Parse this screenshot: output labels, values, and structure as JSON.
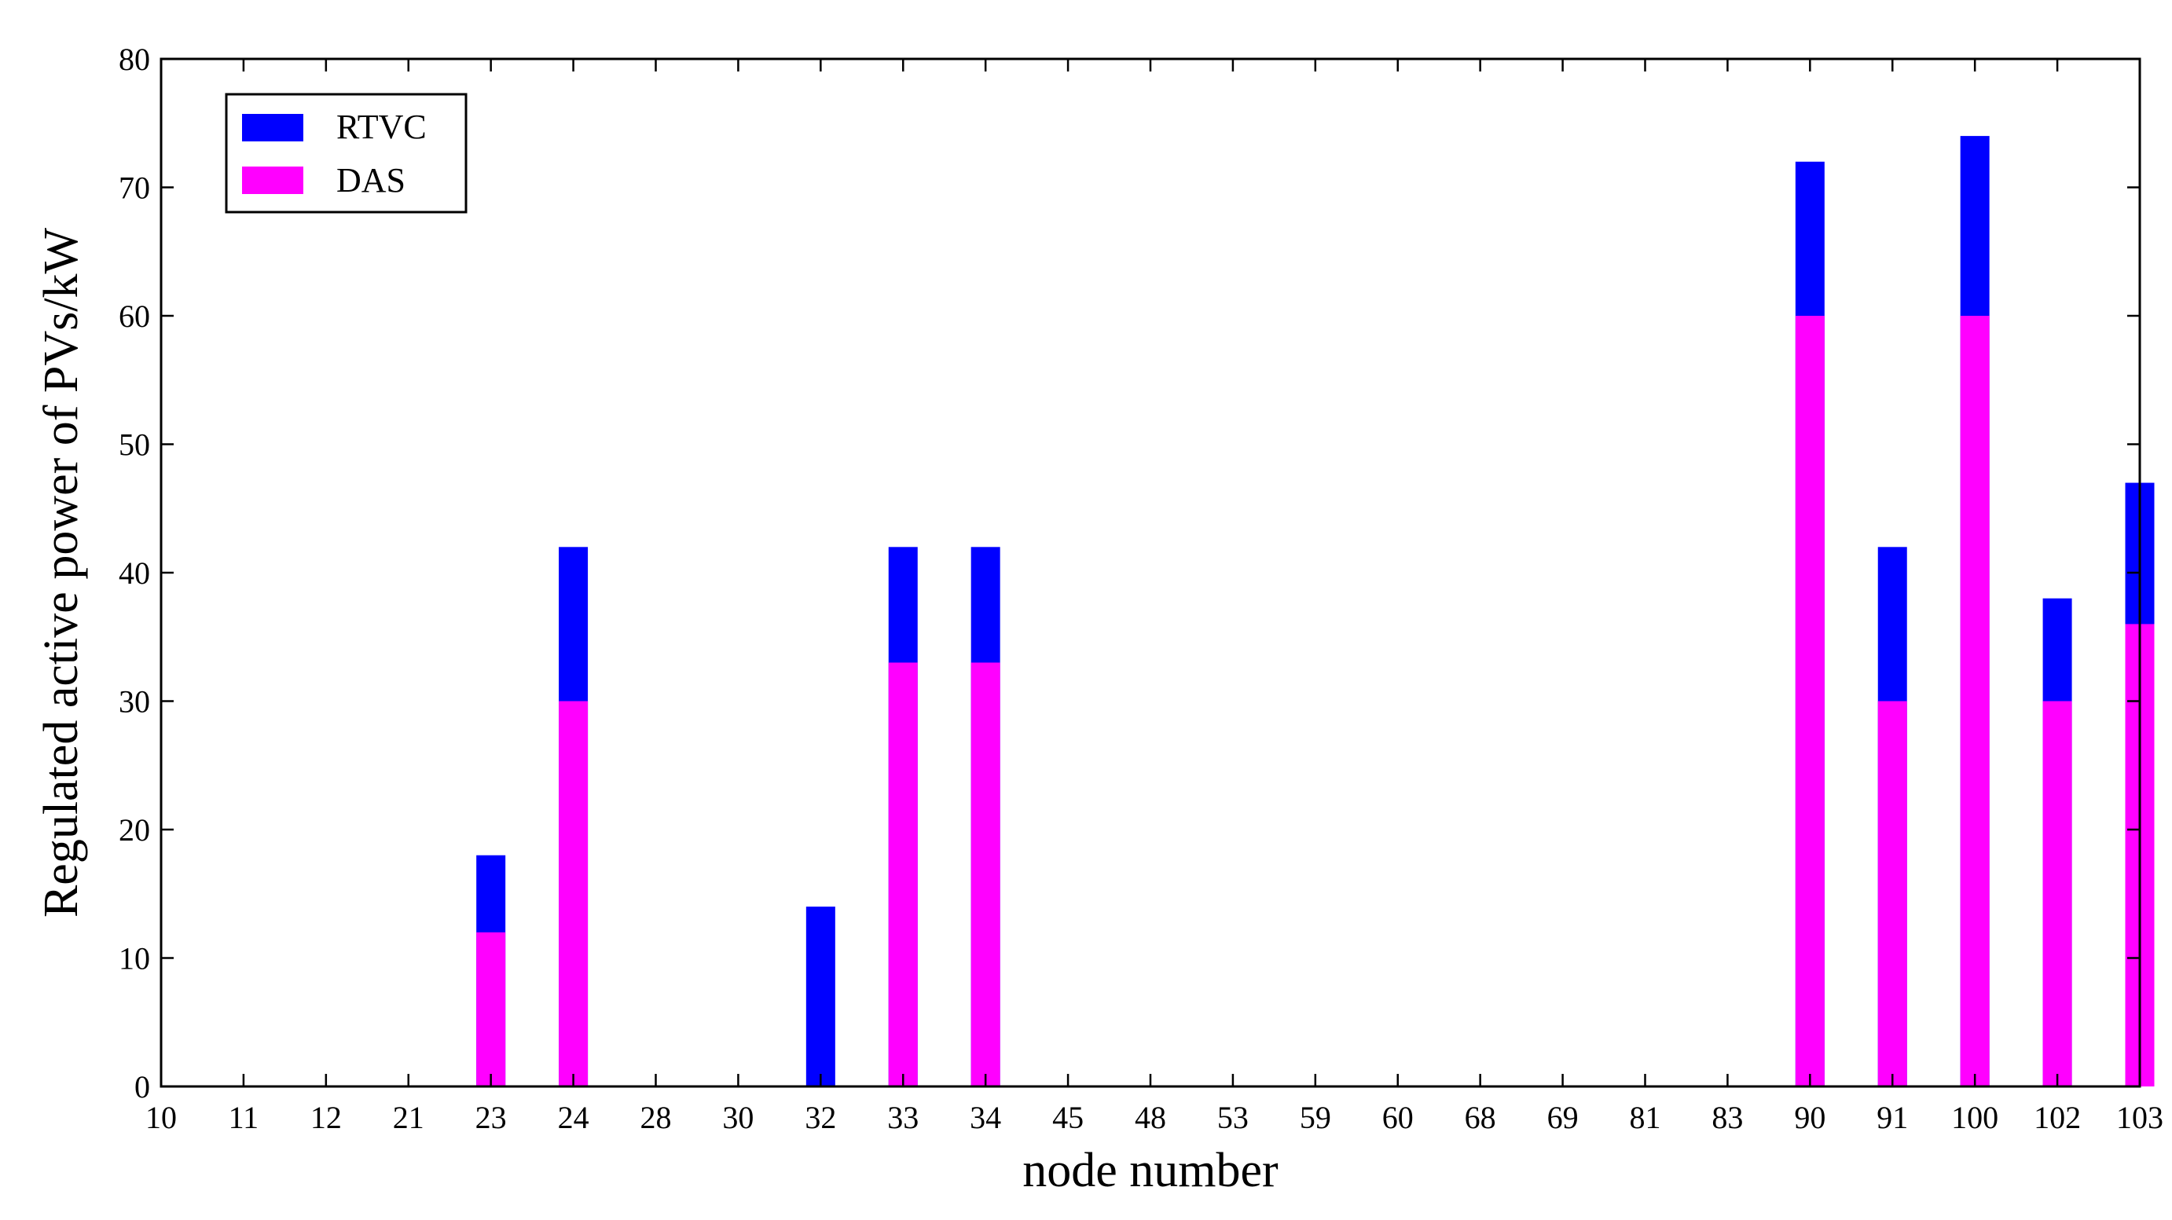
{
  "chart_data": {
    "type": "bar",
    "stacked": true,
    "title": "",
    "xlabel": "node number",
    "ylabel": "Regulated active power of PVs/kW",
    "ylim": [
      0,
      80
    ],
    "yticks": [
      "0",
      "10",
      "20",
      "30",
      "40",
      "50",
      "60",
      "70",
      "80"
    ],
    "categories": [
      "10",
      "11",
      "12",
      "21",
      "23",
      "24",
      "28",
      "30",
      "32",
      "33",
      "34",
      "45",
      "48",
      "53",
      "59",
      "60",
      "68",
      "69",
      "81",
      "83",
      "90",
      "91",
      "100",
      "102",
      "103"
    ],
    "series": [
      {
        "name": "RTVC",
        "color": "#0000ff",
        "total_values": [
          0,
          0,
          0,
          0,
          18,
          42,
          0,
          0,
          14,
          42,
          42,
          0,
          0,
          0,
          0,
          0,
          0,
          0,
          0,
          0,
          72,
          42,
          74,
          38,
          47
        ]
      },
      {
        "name": "DAS",
        "color": "#ff00ff",
        "values": [
          0,
          0,
          0,
          0,
          12,
          30,
          0,
          0,
          0,
          33,
          33,
          0,
          0,
          0,
          0,
          0,
          0,
          0,
          0,
          0,
          60,
          30,
          60,
          30,
          36
        ]
      }
    ],
    "grid": false,
    "legend_position": "top-left"
  }
}
